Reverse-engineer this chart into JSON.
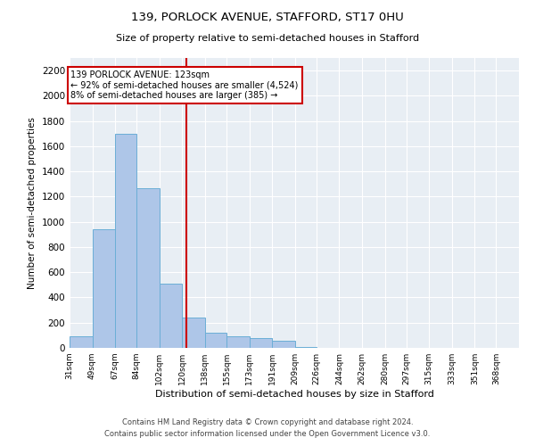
{
  "title1": "139, PORLOCK AVENUE, STAFFORD, ST17 0HU",
  "title2": "Size of property relative to semi-detached houses in Stafford",
  "xlabel": "Distribution of semi-detached houses by size in Stafford",
  "ylabel": "Number of semi-detached properties",
  "footer1": "Contains HM Land Registry data © Crown copyright and database right 2024.",
  "footer2": "Contains public sector information licensed under the Open Government Licence v3.0.",
  "annotation_line1": "139 PORLOCK AVENUE: 123sqm",
  "annotation_line2": "← 92% of semi-detached houses are smaller (4,524)",
  "annotation_line3": "8% of semi-detached houses are larger (385) →",
  "property_size": 123,
  "bin_edges": [
    31,
    49,
    67,
    84,
    102,
    120,
    138,
    155,
    173,
    191,
    209,
    226,
    244,
    262,
    280,
    297,
    315,
    333,
    351,
    368,
    386
  ],
  "bar_heights": [
    90,
    940,
    1700,
    1270,
    510,
    240,
    120,
    90,
    80,
    55,
    10,
    0,
    0,
    0,
    0,
    0,
    0,
    0,
    0,
    0
  ],
  "bar_color": "#aec6e8",
  "bar_edge_color": "#6baed6",
  "vertical_line_color": "#cc0000",
  "background_color": "#e8eef4",
  "grid_color": "#ffffff",
  "ylim": [
    0,
    2300
  ],
  "yticks": [
    0,
    200,
    400,
    600,
    800,
    1000,
    1200,
    1400,
    1600,
    1800,
    2000,
    2200
  ]
}
